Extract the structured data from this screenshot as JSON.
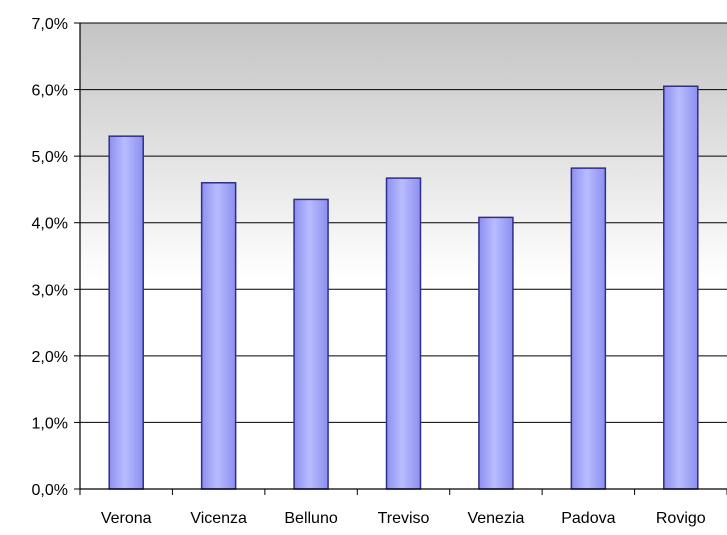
{
  "chart_data": {
    "type": "bar",
    "title": "",
    "xlabel": "",
    "ylabel": "",
    "categories": [
      "Verona",
      "Vicenza",
      "Belluno",
      "Treviso",
      "Venezia",
      "Padova",
      "Rovigo"
    ],
    "values": [
      5.3,
      4.6,
      4.35,
      4.67,
      4.08,
      4.82,
      6.05
    ],
    "ylim": [
      0,
      7
    ],
    "yticks": [
      0,
      1,
      2,
      3,
      4,
      5,
      6,
      7
    ],
    "ytick_labels": [
      "0,0%",
      "1,0%",
      "2,0%",
      "3,0%",
      "4,0%",
      "5,0%",
      "6,0%",
      "7,0%"
    ],
    "grid": "horizontal",
    "legend": "none",
    "colors": {
      "bar_light": "#b8bcff",
      "bar_mid": "#8c90ee",
      "bar_dark": "#2e2f8a",
      "plot_bg_top": "#c4c4c4",
      "plot_bg_bottom": "#ffffff"
    }
  }
}
